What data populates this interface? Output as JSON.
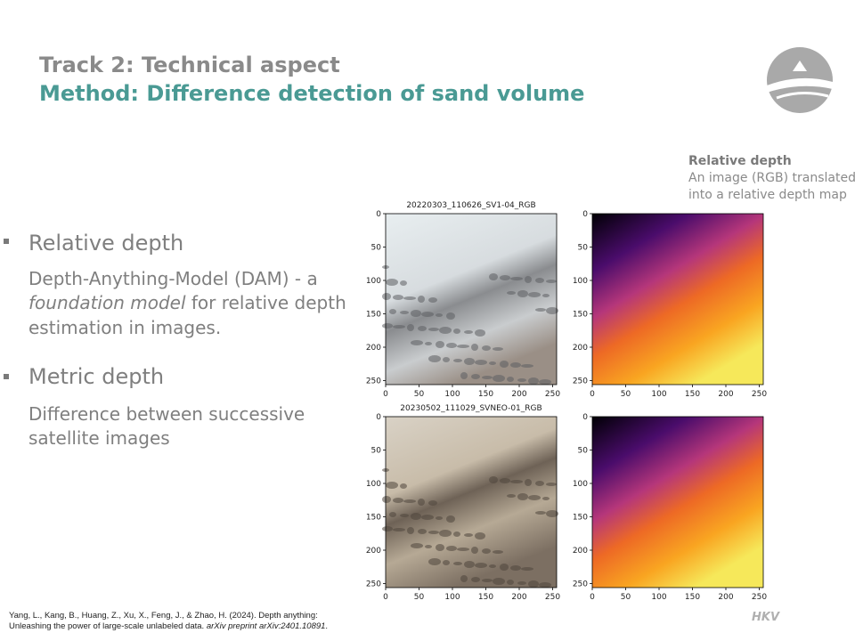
{
  "header": {
    "title": "Track 2: Technical aspect",
    "subtitle": "Method: Difference detection of sand volume"
  },
  "callout": {
    "title": "Relative depth",
    "lines": [
      "An image (RGB) translated",
      "into a relative depth map"
    ]
  },
  "bullets": [
    {
      "heading": "Relative depth",
      "text": {
        "line1": "Depth-Anything-Model (DAM) - a",
        "italic": "foundation model",
        "line2_rest": " for relative depth",
        "line3": "estimation in images."
      }
    },
    {
      "heading": "Metric depth",
      "lines": [
        "Difference between successive",
        "satellite images"
      ]
    }
  ],
  "figures": [
    {
      "title": "20220303_110626_SV1-04_RGB",
      "kind": "rgb"
    },
    {
      "title": null,
      "kind": "depth"
    },
    {
      "title": "20230502_111029_SVNEO-01_RGB",
      "kind": "rgb"
    },
    {
      "title": null,
      "kind": "depth"
    }
  ],
  "ticks": [
    0,
    50,
    100,
    150,
    200,
    250
  ],
  "footnote": {
    "line1": "Yang, L., Kang, B., Huang, Z., Xu, X., Feng, J., & Zhao, H. (2024). Depth anything:",
    "line2": "Unleashing the power of large-scale unlabeled data. ",
    "line2_italic": "arXiv preprint arXiv:2401.10891",
    "line2_end": "."
  },
  "logo_text": "HKV"
}
